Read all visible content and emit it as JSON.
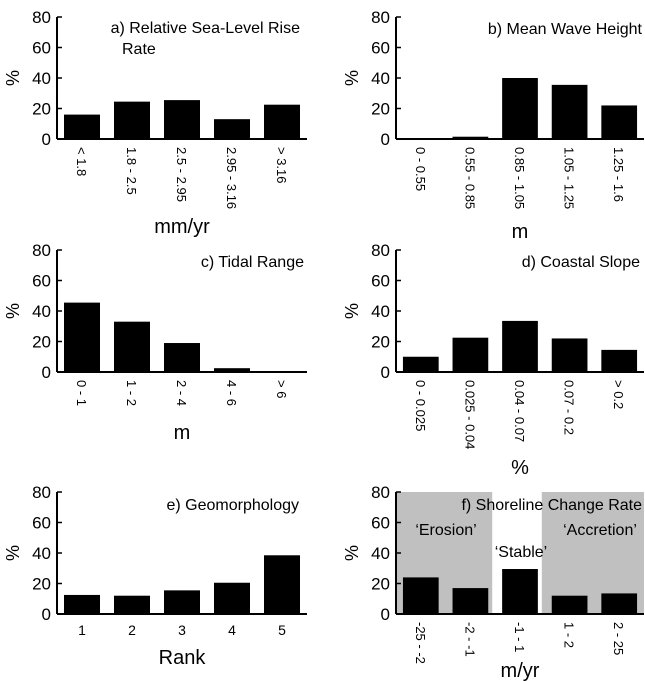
{
  "chart_data": [
    {
      "type": "bar",
      "title": "a) Relative Sea-Level Rise",
      "title2": "Rate",
      "ylabel": "%",
      "xlabel": "mm/yr",
      "ylim": [
        0,
        80
      ],
      "yticks": [
        "0",
        "20",
        "40",
        "60",
        "80"
      ],
      "categories": [
        "< 1.8",
        "1.8 - 2.5",
        "2.5 - 2.95",
        "2.95 - 3.16",
        "> 3.16"
      ],
      "values": [
        16,
        24.5,
        25.5,
        13,
        22.5
      ]
    },
    {
      "type": "bar",
      "title": "b) Mean Wave Height",
      "ylabel": "%",
      "xlabel": "m",
      "ylim": [
        0,
        80
      ],
      "yticks": [
        "0",
        "20",
        "40",
        "60",
        "80"
      ],
      "categories": [
        "0 - 0.55",
        "0.55 - 0.85",
        "0.85 - 1.05",
        "1.05 - 1.25",
        "1.25 - 1.6"
      ],
      "values": [
        0.3,
        1.5,
        40,
        35.5,
        22
      ]
    },
    {
      "type": "bar",
      "title": "c) Tidal Range",
      "ylabel": "%",
      "xlabel": "m",
      "ylim": [
        0,
        80
      ],
      "yticks": [
        "0",
        "20",
        "40",
        "60",
        "80"
      ],
      "categories": [
        "0 - 1",
        "1 - 2",
        "2 - 4",
        "4 - 6",
        "> 6"
      ],
      "values": [
        45.5,
        33,
        19,
        2.5,
        0.3
      ]
    },
    {
      "type": "bar",
      "title": "d) Coastal Slope",
      "ylabel": "%",
      "xlabel": "%",
      "ylim": [
        0,
        80
      ],
      "yticks": [
        "0",
        "20",
        "40",
        "60",
        "80"
      ],
      "categories": [
        "0 - 0.025",
        "0.025 - 0.04",
        "0.04 - 0.07",
        "0.07 - 0.2",
        "> 0.2"
      ],
      "values": [
        10,
        22.5,
        33.5,
        22,
        14.5
      ]
    },
    {
      "type": "bar",
      "title": "e) Geomorphology",
      "ylabel": "%",
      "xlabel": "Rank",
      "ylim": [
        0,
        80
      ],
      "yticks": [
        "0",
        "20",
        "40",
        "60",
        "80"
      ],
      "categories": [
        "1",
        "2",
        "3",
        "4",
        "5"
      ],
      "values": [
        12.5,
        12,
        15.5,
        20.5,
        38.5
      ]
    },
    {
      "type": "bar",
      "title": "f) Shoreline Change Rate",
      "ylabel": "%",
      "xlabel": "m/yr",
      "ylim": [
        0,
        80
      ],
      "yticks": [
        "0",
        "20",
        "40",
        "60",
        "80"
      ],
      "categories": [
        "-25 - -2",
        "-2 - -1",
        "-1 - 1",
        "1 - 2",
        "2 - 25"
      ],
      "values": [
        24,
        17,
        29.5,
        12,
        13.5
      ],
      "annotations": [
        "‘Erosion’",
        "‘Stable’",
        "‘Accretion’"
      ],
      "shaded_color": "#c0c0c0"
    }
  ]
}
